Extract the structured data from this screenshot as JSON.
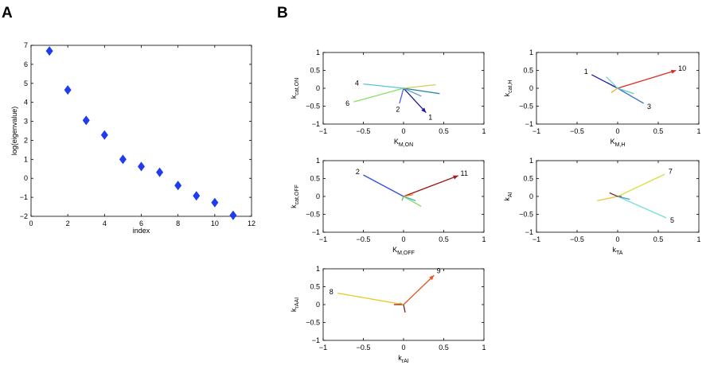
{
  "panels": {
    "a_letter": "A",
    "b_letter": "B"
  },
  "chart_data": [
    {
      "id": "A",
      "type": "scatter",
      "xlabel": "index",
      "ylabel": "log(eigenvalue)",
      "xlim": [
        0,
        12
      ],
      "ylim": [
        -2,
        7
      ],
      "xticks": [
        0,
        2,
        4,
        6,
        8,
        10,
        12
      ],
      "yticks": [
        -2,
        -1,
        0,
        1,
        2,
        3,
        4,
        5,
        6,
        7
      ],
      "marker": "diamond",
      "color": "#1f3cf0",
      "x": [
        1,
        2,
        3,
        4,
        5,
        6,
        7,
        8,
        9,
        10,
        11
      ],
      "y": [
        6.7,
        4.65,
        3.05,
        2.28,
        1.0,
        0.62,
        0.32,
        -0.38,
        -0.92,
        -1.28,
        -1.95
      ]
    },
    {
      "id": "B1",
      "type": "vector",
      "xlabel": {
        "main": "K",
        "sub": "M,ON"
      },
      "ylabel": {
        "main": "k",
        "sub": "cat,ON"
      },
      "xlim": [
        -1,
        1
      ],
      "ylim": [
        -1,
        1
      ],
      "xticks": [
        -1,
        -0.5,
        0,
        0.5,
        1
      ],
      "yticks": [
        -1,
        -0.5,
        0,
        0.5,
        1
      ],
      "vectors": [
        {
          "x": 0.28,
          "y": -0.68,
          "color": "#1a1a9e",
          "label": "1",
          "head": true
        },
        {
          "x": -0.05,
          "y": -0.42,
          "color": "#4a5fe0",
          "label": "2",
          "head": false
        },
        {
          "x": -0.5,
          "y": 0.12,
          "color": "#55c8d8",
          "label": "4",
          "head": false
        },
        {
          "x": -0.62,
          "y": -0.38,
          "color": "#88e060",
          "label": "6",
          "head": false
        },
        {
          "x": 0.45,
          "y": -0.15,
          "color": "#2080a8",
          "label": "",
          "head": false
        },
        {
          "x": 0.4,
          "y": 0.1,
          "color": "#d0d050",
          "label": "",
          "head": false
        },
        {
          "x": 0.22,
          "y": -0.22,
          "color": "#60a0c8",
          "label": "",
          "head": false
        }
      ]
    },
    {
      "id": "B2",
      "type": "vector",
      "xlabel": {
        "main": "K",
        "sub": "M,H"
      },
      "ylabel": {
        "main": "k",
        "sub": "cat,H"
      },
      "xlim": [
        -1,
        1
      ],
      "ylim": [
        -1,
        1
      ],
      "xticks": [
        -1,
        -0.5,
        0,
        0.5,
        1
      ],
      "yticks": [
        -1,
        -0.5,
        0,
        0.5,
        1
      ],
      "vectors": [
        {
          "x": 0.72,
          "y": 0.5,
          "color": "#e02a20",
          "label": "10",
          "head": true
        },
        {
          "x": -0.32,
          "y": 0.38,
          "color": "#1a1a9e",
          "label": "1",
          "head": false
        },
        {
          "x": 0.32,
          "y": -0.42,
          "color": "#3070c8",
          "label": "3",
          "head": false
        },
        {
          "x": -0.14,
          "y": 0.32,
          "color": "#70d0e0",
          "label": "",
          "head": false
        },
        {
          "x": -0.08,
          "y": -0.12,
          "color": "#f0b020",
          "label": "",
          "head": false
        },
        {
          "x": 0.2,
          "y": -0.15,
          "color": "#60c8c0",
          "label": "",
          "head": false
        }
      ]
    },
    {
      "id": "B3",
      "type": "vector",
      "xlabel": {
        "main": "K",
        "sub": "M,OFF"
      },
      "ylabel": {
        "main": "k",
        "sub": "cat,OFF"
      },
      "xlim": [
        -1,
        1
      ],
      "ylim": [
        -1,
        1
      ],
      "xticks": [
        -1,
        -0.5,
        0,
        0.5,
        1
      ],
      "yticks": [
        -1,
        -0.5,
        0,
        0.5,
        1
      ],
      "vectors": [
        {
          "x": 0.68,
          "y": 0.58,
          "color": "#a01818",
          "label": "11",
          "head": true
        },
        {
          "x": -0.5,
          "y": 0.6,
          "color": "#3050e0",
          "label": "2",
          "head": false
        },
        {
          "x": 0.22,
          "y": -0.28,
          "color": "#80e060",
          "label": "",
          "head": false
        },
        {
          "x": 0.15,
          "y": -0.12,
          "color": "#40b0c0",
          "label": "",
          "head": false
        },
        {
          "x": 0.12,
          "y": 0.05,
          "color": "#f09020",
          "label": "",
          "head": false
        },
        {
          "x": -0.02,
          "y": -0.12,
          "color": "#60c060",
          "label": "",
          "head": false
        }
      ]
    },
    {
      "id": "B4",
      "type": "vector",
      "xlabel": {
        "main": "k",
        "sub": "TA"
      },
      "ylabel": {
        "main": "k",
        "sub": "AI"
      },
      "xlim": [
        -1,
        1
      ],
      "ylim": [
        -1,
        1
      ],
      "xticks": [
        -1,
        -0.5,
        0,
        0.5,
        1
      ],
      "yticks": [
        -1,
        -0.5,
        0,
        0.5,
        1
      ],
      "vectors": [
        {
          "x": 0.58,
          "y": 0.62,
          "color": "#d8e040",
          "label": "7",
          "head": false
        },
        {
          "x": 0.6,
          "y": -0.6,
          "color": "#70e0d8",
          "label": "5",
          "head": false
        },
        {
          "x": -0.25,
          "y": -0.12,
          "color": "#f0c030",
          "label": "",
          "head": false
        },
        {
          "x": -0.1,
          "y": 0.1,
          "color": "#7a3030",
          "label": "",
          "head": false
        },
        {
          "x": 0.05,
          "y": 0.0,
          "color": "#d02020",
          "label": "",
          "head": false
        },
        {
          "x": 0.15,
          "y": -0.08,
          "color": "#40a0b8",
          "label": "",
          "head": false
        }
      ]
    },
    {
      "id": "B5",
      "type": "vector",
      "xlabel": {
        "main": "k",
        "sub": "rAI"
      },
      "ylabel": {
        "main": "k",
        "sub": "rAAI"
      },
      "xlim": [
        -1,
        1
      ],
      "ylim": [
        -1,
        1
      ],
      "xticks": [
        -1,
        -0.5,
        0,
        0.5,
        1
      ],
      "yticks": [
        -1,
        -0.5,
        0,
        0.5,
        1
      ],
      "vectors": [
        {
          "x": 0.38,
          "y": 0.82,
          "color": "#f05020",
          "label": "9",
          "head": true
        },
        {
          "x": -0.82,
          "y": 0.32,
          "color": "#e8c820",
          "label": "8",
          "head": false
        },
        {
          "x": 0.02,
          "y": -0.22,
          "color": "#7a2020",
          "label": "",
          "head": false
        },
        {
          "x": -0.12,
          "y": 0.0,
          "color": "#b01818",
          "label": "",
          "head": false
        },
        {
          "x": -0.05,
          "y": 0.05,
          "color": "#a0d040",
          "label": "",
          "head": false
        }
      ]
    }
  ]
}
